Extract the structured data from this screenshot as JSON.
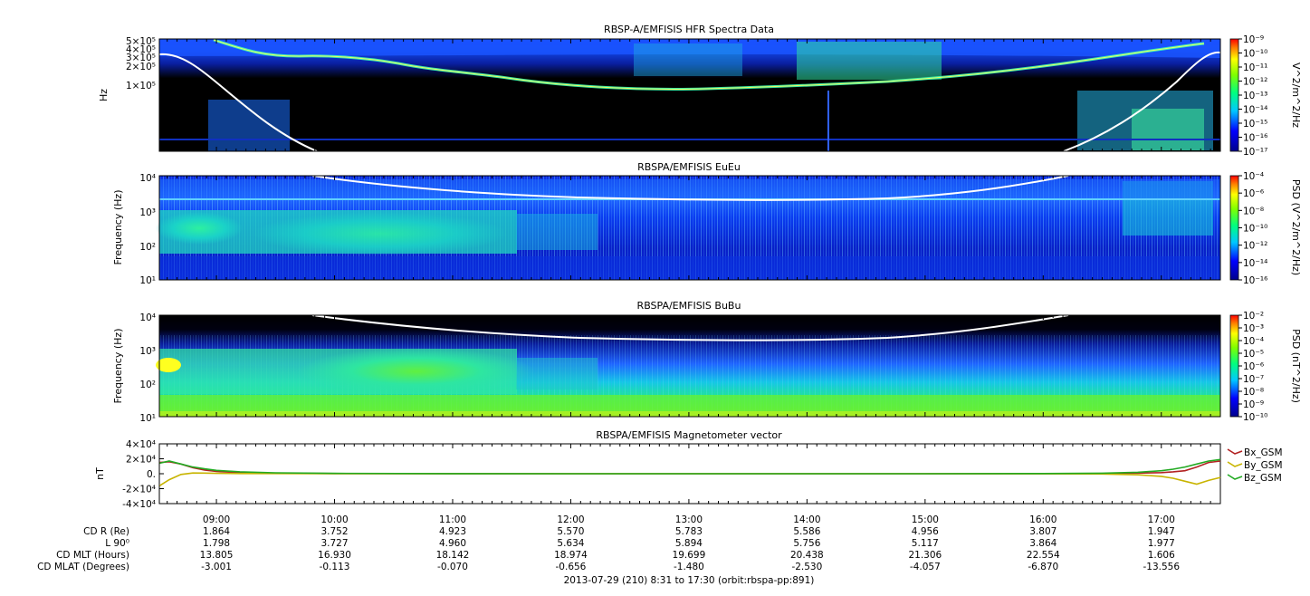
{
  "chart_data": [
    {
      "type": "heatmap",
      "title": "RBSP-A/EMFISIS  HFR Spectra Data",
      "ylabel": "Hz",
      "y_scale": "log",
      "y_ticks": [
        "5×10⁵",
        "4×10⁵",
        "3×10⁵",
        "2×10⁵",
        "1×10⁵"
      ],
      "colorbar": {
        "label": "V^2/m^2/Hz",
        "scale": "log",
        "ticks": [
          "10⁻⁹",
          "10⁻¹⁰",
          "10⁻¹¹",
          "10⁻¹²",
          "10⁻¹³",
          "10⁻¹⁴",
          "10⁻¹⁵",
          "10⁻¹⁶",
          "10⁻¹⁷"
        ]
      }
    },
    {
      "type": "heatmap",
      "title": "RBSPA/EMFISIS  EuEu",
      "ylabel": "Frequency (Hz)",
      "y_scale": "log",
      "y_ticks": [
        "10⁴",
        "10³",
        "10²",
        "10¹"
      ],
      "colorbar": {
        "label": "PSD (V^2/m^2/Hz)",
        "scale": "log",
        "ticks": [
          "10⁻⁴",
          "10⁻⁶",
          "10⁻⁸",
          "10⁻¹⁰",
          "10⁻¹²",
          "10⁻¹⁴",
          "10⁻¹⁶"
        ]
      }
    },
    {
      "type": "heatmap",
      "title": "RBSPA/EMFISIS  BuBu",
      "ylabel": "Frequency (Hz)",
      "y_scale": "log",
      "y_ticks": [
        "10⁴",
        "10³",
        "10²",
        "10¹"
      ],
      "colorbar": {
        "label": "PSD (nT^2/Hz)",
        "scale": "log",
        "ticks": [
          "10⁻²",
          "10⁻³",
          "10⁻⁴",
          "10⁻⁵",
          "10⁻⁶",
          "10⁻⁷",
          "10⁻⁸",
          "10⁻⁹",
          "10⁻¹⁰"
        ]
      }
    },
    {
      "type": "line",
      "title": "RBSPA/EMFISIS  Magnetometer vector",
      "ylabel": "nT",
      "ylim": [
        -40000,
        40000
      ],
      "y_ticks": [
        {
          "value": 40000,
          "label": "4×10⁴"
        },
        {
          "value": 20000,
          "label": "2×10⁴"
        },
        {
          "value": 0,
          "label": "0."
        },
        {
          "value": -20000,
          "label": "-2×10⁴"
        },
        {
          "value": -40000,
          "label": "-4×10⁴"
        }
      ],
      "x_hours": [
        8.52,
        8.6,
        8.7,
        8.8,
        8.9,
        9.0,
        9.2,
        9.5,
        10.0,
        11.0,
        12.0,
        13.0,
        14.0,
        15.0,
        16.0,
        16.5,
        16.8,
        17.0,
        17.1,
        17.2,
        17.3,
        17.4,
        17.5
      ],
      "series": [
        {
          "name": "Bx_GSM",
          "color": "#b22222",
          "values": [
            15000,
            16000,
            13000,
            8000,
            5000,
            3000,
            1500,
            700,
            300,
            100,
            50,
            0,
            0,
            0,
            100,
            300,
            800,
            1500,
            2500,
            4000,
            9000,
            15000,
            17000
          ]
        },
        {
          "name": "By_GSM",
          "color": "#c8b400",
          "values": [
            -16000,
            -8000,
            -1000,
            1000,
            800,
            500,
            300,
            200,
            100,
            50,
            0,
            0,
            0,
            0,
            -100,
            -400,
            -1500,
            -3500,
            -6000,
            -10000,
            -14000,
            -9000,
            -5000
          ]
        },
        {
          "name": "Bz_GSM",
          "color": "#22aa22",
          "values": [
            14000,
            17000,
            13000,
            9000,
            6500,
            4500,
            2500,
            1200,
            500,
            150,
            50,
            0,
            0,
            0,
            200,
            700,
            2000,
            4000,
            6000,
            9000,
            13000,
            17000,
            19000
          ]
        }
      ]
    }
  ],
  "x_axis": {
    "time_ticks": [
      "09:00",
      "10:00",
      "11:00",
      "12:00",
      "13:00",
      "14:00",
      "15:00",
      "16:00",
      "17:00"
    ],
    "tick_hours": [
      9,
      10,
      11,
      12,
      13,
      14,
      15,
      16,
      17
    ],
    "range_hours": [
      8.5167,
      17.5
    ],
    "ephemeris": [
      {
        "label": "CD R (Re)",
        "values": [
          "1.864",
          "3.752",
          "4.923",
          "5.570",
          "5.783",
          "5.586",
          "4.956",
          "3.807",
          "1.947"
        ]
      },
      {
        "label": "L 90⁰",
        "values": [
          "1.798",
          "3.727",
          "4.960",
          "5.634",
          "5.894",
          "5.756",
          "5.117",
          "3.864",
          "1.977"
        ]
      },
      {
        "label": "CD MLT (Hours)",
        "values": [
          "13.805",
          "16.930",
          "18.142",
          "18.974",
          "19.699",
          "20.438",
          "21.306",
          "22.554",
          "1.606"
        ]
      },
      {
        "label": "CD MLAT (Degrees)",
        "values": [
          "-3.001",
          "-0.113",
          "-0.070",
          "-0.656",
          "-1.480",
          "-2.530",
          "-4.057",
          "-6.870",
          "-13.556"
        ]
      }
    ],
    "footer": "2013-07-29 (210) 8:31 to 17:30 (orbit:rbspa-pp:891)"
  }
}
